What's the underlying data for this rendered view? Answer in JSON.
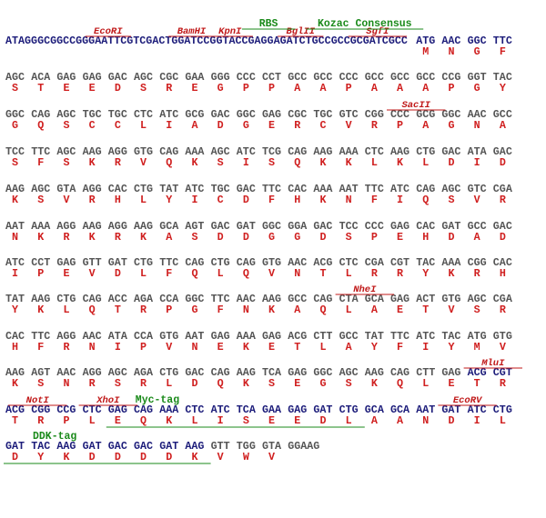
{
  "rows": [
    {
      "leader": "ATAGGGCGGCCGGGAATTCGTCGACTGGATCCGGTACCGAGGAGATCTGCCGCCGCGATCGCC",
      "codons": [
        "ATG",
        "AAC",
        "GGC",
        "TTC"
      ],
      "aa": [
        "M",
        "N",
        "G",
        "F"
      ],
      "sites": [
        "EcoRI",
        "BamHI",
        "KpnI",
        "BglII",
        "SgfI"
      ],
      "features": [
        "RBS",
        "Kozac Consensus"
      ]
    },
    {
      "codons": [
        "AGC",
        "ACA",
        "GAG",
        "GAG",
        "GAC",
        "AGC",
        "CGC",
        "GAA",
        "GGG",
        "CCC",
        "CCT",
        "GCC",
        "GCC",
        "CCC",
        "GCC",
        "GCC",
        "GCC",
        "CCG",
        "GGT",
        "TAC"
      ],
      "aa": [
        "S",
        "T",
        "E",
        "E",
        "D",
        "S",
        "R",
        "E",
        "G",
        "P",
        "P",
        "A",
        "A",
        "P",
        "A",
        "A",
        "A",
        "P",
        "G",
        "Y"
      ]
    },
    {
      "codons": [
        "GGC",
        "CAG",
        "AGC",
        "TGC",
        "TGC",
        "CTC",
        "ATC",
        "GCG",
        "GAC",
        "GGC",
        "GAG",
        "CGC",
        "TGC",
        "GTC",
        "CGG",
        "CCC",
        "GCG",
        "GGC",
        "AAC",
        "GCC"
      ],
      "aa": [
        "G",
        "Q",
        "S",
        "C",
        "C",
        "L",
        "I",
        "A",
        "D",
        "G",
        "E",
        "R",
        "C",
        "V",
        "R",
        "P",
        "A",
        "G",
        "N",
        "A"
      ],
      "sites": [
        "SacII"
      ]
    },
    {
      "codons": [
        "TCC",
        "TTC",
        "AGC",
        "AAG",
        "AGG",
        "GTG",
        "CAG",
        "AAA",
        "AGC",
        "ATC",
        "TCG",
        "CAG",
        "AAG",
        "AAA",
        "CTC",
        "AAG",
        "CTG",
        "GAC",
        "ATA",
        "GAC"
      ],
      "aa": [
        "S",
        "F",
        "S",
        "K",
        "R",
        "V",
        "Q",
        "K",
        "S",
        "I",
        "S",
        "Q",
        "K",
        "K",
        "L",
        "K",
        "L",
        "D",
        "I",
        "D"
      ]
    },
    {
      "codons": [
        "AAG",
        "AGC",
        "GTA",
        "AGG",
        "CAC",
        "CTG",
        "TAT",
        "ATC",
        "TGC",
        "GAC",
        "TTC",
        "CAC",
        "AAA",
        "AAT",
        "TTC",
        "ATC",
        "CAG",
        "AGC",
        "GTC",
        "CGA"
      ],
      "aa": [
        "K",
        "S",
        "V",
        "R",
        "H",
        "L",
        "Y",
        "I",
        "C",
        "D",
        "F",
        "H",
        "K",
        "N",
        "F",
        "I",
        "Q",
        "S",
        "V",
        "R"
      ]
    },
    {
      "codons": [
        "AAT",
        "AAA",
        "AGG",
        "AAG",
        "AGG",
        "AAG",
        "GCA",
        "AGT",
        "GAC",
        "GAT",
        "GGC",
        "GGA",
        "GAC",
        "TCC",
        "CCC",
        "GAG",
        "CAC",
        "GAT",
        "GCC",
        "GAC"
      ],
      "aa": [
        "N",
        "K",
        "R",
        "K",
        "R",
        "K",
        "A",
        "S",
        "D",
        "D",
        "G",
        "G",
        "D",
        "S",
        "P",
        "E",
        "H",
        "D",
        "A",
        "D"
      ]
    },
    {
      "codons": [
        "ATC",
        "CCT",
        "GAG",
        "GTT",
        "GAT",
        "CTG",
        "TTC",
        "CAG",
        "CTG",
        "CAG",
        "GTG",
        "AAC",
        "ACG",
        "CTC",
        "CGA",
        "CGT",
        "TAC",
        "AAA",
        "CGG",
        "CAC"
      ],
      "aa": [
        "I",
        "P",
        "E",
        "V",
        "D",
        "L",
        "F",
        "Q",
        "L",
        "Q",
        "V",
        "N",
        "T",
        "L",
        "R",
        "R",
        "Y",
        "K",
        "R",
        "H"
      ]
    },
    {
      "codons": [
        "TAT",
        "AAG",
        "CTG",
        "CAG",
        "ACC",
        "AGA",
        "CCA",
        "GGC",
        "TTC",
        "AAC",
        "AAG",
        "GCC",
        "CAG",
        "CTA",
        "GCA",
        "GAG",
        "ACT",
        "GTG",
        "AGC",
        "CGA"
      ],
      "aa": [
        "Y",
        "K",
        "L",
        "Q",
        "T",
        "R",
        "P",
        "G",
        "F",
        "N",
        "K",
        "A",
        "Q",
        "L",
        "A",
        "E",
        "T",
        "V",
        "S",
        "R"
      ],
      "sites": [
        "NheI"
      ]
    },
    {
      "codons": [
        "CAC",
        "TTC",
        "AGG",
        "AAC",
        "ATA",
        "CCA",
        "GTG",
        "AAT",
        "GAG",
        "AAA",
        "GAG",
        "ACG",
        "CTT",
        "GCC",
        "TAT",
        "TTC",
        "ATC",
        "TAC",
        "ATG",
        "GTG"
      ],
      "aa": [
        "H",
        "F",
        "R",
        "N",
        "I",
        "P",
        "V",
        "N",
        "E",
        "K",
        "E",
        "T",
        "L",
        "A",
        "Y",
        "F",
        "I",
        "Y",
        "M",
        "V"
      ]
    },
    {
      "codons": [
        "AAG",
        "AGT",
        "AAC",
        "AGG",
        "AGC",
        "AGA",
        "CTG",
        "GAC",
        "CAG",
        "AAG",
        "TCA",
        "GAG",
        "GGC",
        "AGC",
        "AAG",
        "CAG",
        "CTT",
        "GAG",
        "ACG",
        "CGT"
      ],
      "aa": [
        "K",
        "S",
        "N",
        "R",
        "S",
        "R",
        "L",
        "D",
        "Q",
        "K",
        "S",
        "E",
        "G",
        "S",
        "K",
        "Q",
        "L",
        "E",
        "T",
        "R"
      ],
      "sites": [
        "MluI"
      ]
    },
    {
      "codons": [
        "ACG",
        "CGG",
        "CCG",
        "CTC",
        "GAG",
        "CAG",
        "AAA",
        "CTC",
        "ATC",
        "TCA",
        "GAA",
        "GAG",
        "GAT",
        "CTG",
        "GCA",
        "GCA",
        "AAT",
        "GAT",
        "ATC",
        "CTG"
      ],
      "aa": [
        "T",
        "R",
        "P",
        "L",
        "E",
        "Q",
        "K",
        "L",
        "I",
        "S",
        "E",
        "E",
        "D",
        "L",
        "A",
        "A",
        "N",
        "D",
        "I",
        "L"
      ],
      "sites": [
        "NotI",
        "XhoI",
        "EcoRV"
      ],
      "features": [
        "Myc-tag"
      ]
    },
    {
      "codons": [
        "GAT",
        "TAC",
        "AAG",
        "GAT",
        "GAC",
        "GAC",
        "GAT",
        "AAG",
        "GTT",
        "TGG",
        "GTA",
        "GGAAG"
      ],
      "aa": [
        "D",
        "Y",
        "K",
        "D",
        "D",
        "D",
        "D",
        "K",
        "V",
        "W",
        "V"
      ],
      "features": [
        "DDK-tag"
      ]
    }
  ]
}
